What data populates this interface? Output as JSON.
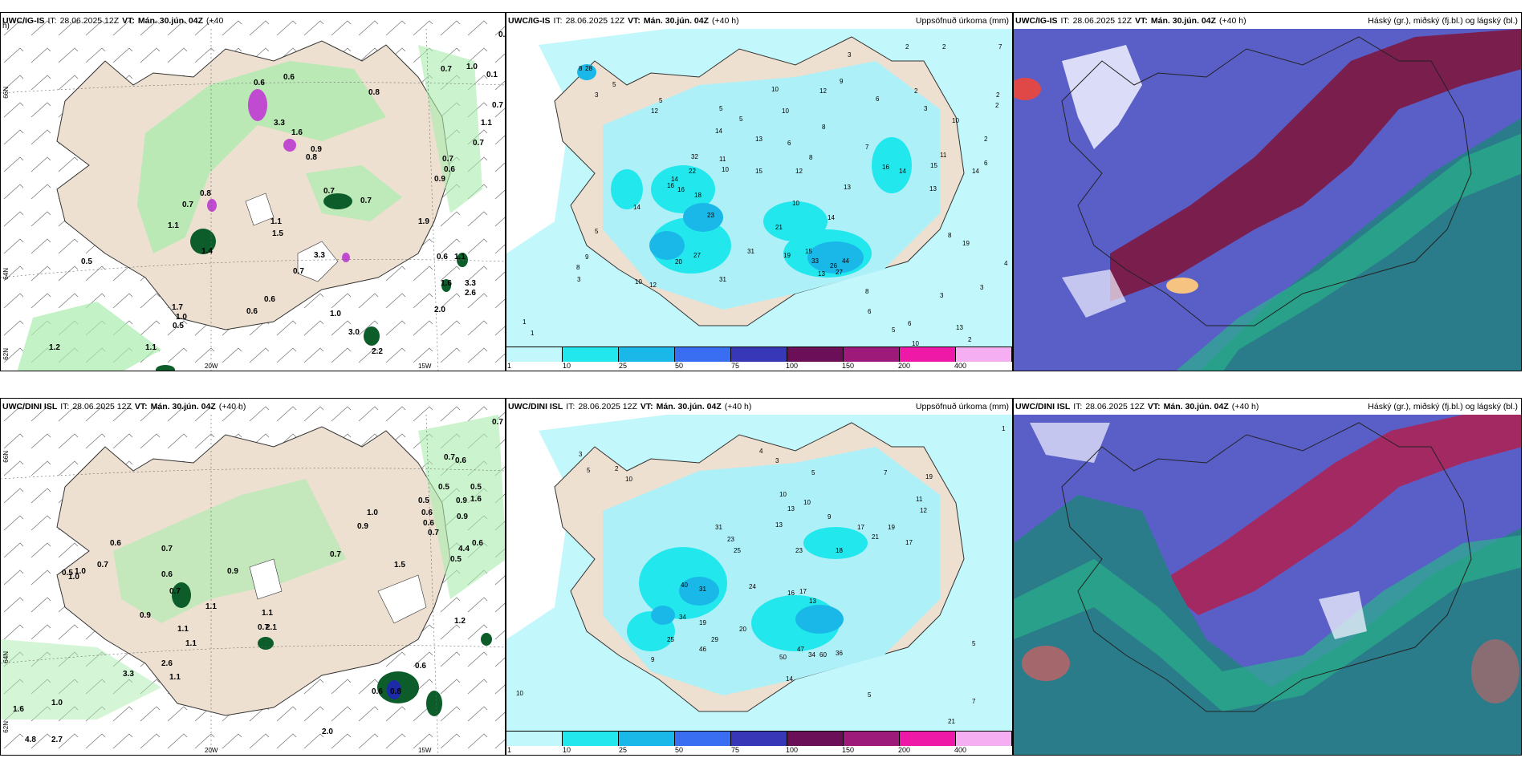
{
  "top_left": {
    "model": "UWC/IG-IS",
    "it_label": "IT:",
    "it_value": "28.06.2025 12Z",
    "vt_label": "VT:",
    "vt_value": "Mán. 30.jún. 04Z",
    "lead": "(+40",
    "lead2": "h)",
    "lat_labels": [
      "66N",
      "64N",
      "62N"
    ],
    "lon_labels": [
      "20W",
      "15W"
    ],
    "values": [
      "0.6",
      "0.7",
      "1.0",
      "0.1",
      "0.7",
      "1.1",
      "0.7",
      "0.8",
      "0.6",
      "0.6",
      "3.3",
      "1.6",
      "0.9",
      "0.8",
      "0.7",
      "0.6",
      "0.9",
      "0.8",
      "0.7",
      "0.7",
      "0.7",
      "1.1",
      "1.5",
      "1.1",
      "1.4",
      "0.5",
      "3.3",
      "0.7",
      "1.9",
      "0.6",
      "0.6",
      "1.1",
      "1.6",
      "3.3",
      "2.6",
      "0.6",
      "1.7",
      "1.0",
      "0.5",
      "1.0",
      "2.0",
      "3.0",
      "1.2",
      "1.1",
      "2.2"
    ]
  },
  "top_mid": {
    "model": "UWC/IG-IS",
    "it_label": "IT:",
    "it_value": "28.06.2025 12Z",
    "vt_label": "VT:",
    "vt_value": "Mán. 30.jún. 04Z",
    "lead": "(+40 h)",
    "right_title": "Uppsöfnuð úrkoma (mm)",
    "values": [
      "3",
      "2",
      "2",
      "7",
      "8",
      "28",
      "5",
      "3",
      "5",
      "12",
      "2",
      "2",
      "5",
      "10",
      "12",
      "9",
      "6",
      "2",
      "3",
      "5",
      "10",
      "8",
      "7",
      "10",
      "14",
      "13",
      "6",
      "8",
      "11",
      "10",
      "15",
      "12",
      "32",
      "22",
      "14",
      "16",
      "16",
      "18",
      "23",
      "14",
      "13",
      "16",
      "14",
      "15",
      "13",
      "11",
      "14",
      "6",
      "2",
      "10",
      "14",
      "19",
      "21",
      "27",
      "20",
      "31",
      "31",
      "15",
      "13",
      "27",
      "33",
      "44",
      "26",
      "8",
      "10",
      "12",
      "5",
      "9",
      "8",
      "3",
      "1",
      "1",
      "19",
      "3",
      "6",
      "13",
      "2",
      "6",
      "5",
      "8",
      "3",
      "10",
      "4"
    ],
    "legend_colors": [
      "#c2f7fb",
      "#22e8ee",
      "#19b8e8",
      "#3a6ef2",
      "#3737b8",
      "#6a0f58",
      "#9e1a7a",
      "#ee1aa7",
      "#f5aef2"
    ],
    "legend_ticks": [
      "1",
      "10",
      "25",
      "50",
      "75",
      "100",
      "150",
      "200",
      "400"
    ]
  },
  "top_right": {
    "model": "UWC/IG-IS",
    "it_label": "IT:",
    "it_value": "28.06.2025 12Z",
    "vt_label": "VT:",
    "vt_value": "Mán. 30.jún. 04Z",
    "lead": "(+40 h)",
    "right_title": "Háský (gr.), miðský (fj.bl.) og lágský (bl.)"
  },
  "bottom_left": {
    "model": "UWC/DINI ISL",
    "it_label": "IT:",
    "it_value": "28.06.2025 12Z",
    "vt_label": "VT:",
    "vt_value": "Mán. 30.jún. 04Z",
    "lead": "(+40 h)",
    "lat_labels": [
      "66N",
      "64N",
      "62N"
    ],
    "lon_labels": [
      "20W",
      "15W"
    ],
    "values": [
      "0.7",
      "0.7",
      "0.6",
      "0.5",
      "0.5",
      "1.6",
      "0.9",
      "0.5",
      "0.6",
      "0.9",
      "0.6",
      "0.7",
      "0.6",
      "4.4",
      "0.5",
      "1.0",
      "0.9",
      "0.6",
      "0.7",
      "1.0",
      "1.5",
      "0.7",
      "0.7",
      "0.6",
      "0.9",
      "0.7",
      "1.1",
      "0.9",
      "1.1",
      "1.1",
      "0.7",
      "1.1",
      "0.5",
      "1.0",
      "2.1",
      "0.6",
      "1.2",
      "2.6",
      "1.1",
      "3.3",
      "0.6",
      "0.8",
      "1.0",
      "1.6",
      "2.0",
      "4.8",
      "2.7"
    ]
  },
  "bottom_mid": {
    "model": "UWC/DINI ISL",
    "it_label": "IT:",
    "it_value": "28.06.2025 12Z",
    "vt_label": "VT:",
    "vt_value": "Mán. 30.jún. 04Z",
    "lead": "(+40 h)",
    "right_title": "Uppsöfnuð úrkoma (mm)",
    "values": [
      "1",
      "3",
      "5",
      "2",
      "10",
      "4",
      "3",
      "5",
      "7",
      "19",
      "10",
      "10",
      "13",
      "9",
      "11",
      "12",
      "31",
      "23",
      "25",
      "13",
      "23",
      "18",
      "17",
      "19",
      "21",
      "17",
      "40",
      "31",
      "24",
      "16",
      "17",
      "13",
      "34",
      "19",
      "29",
      "46",
      "20",
      "50",
      "47",
      "34",
      "60",
      "36",
      "25",
      "9",
      "14",
      "5",
      "21",
      "10",
      "7",
      "5"
    ],
    "legend_colors": [
      "#c2f7fb",
      "#22e8ee",
      "#19b8e8",
      "#3a6ef2",
      "#3737b8",
      "#6a0f58",
      "#9e1a7a",
      "#ee1aa7",
      "#f5aef2"
    ],
    "legend_ticks": [
      "1",
      "10",
      "25",
      "50",
      "75",
      "100",
      "150",
      "200",
      "400"
    ]
  },
  "bottom_right": {
    "model": "UWC/DINI ISL",
    "it_label": "IT:",
    "it_value": "28.06.2025 12Z",
    "vt_label": "VT:",
    "vt_value": "Mán. 30.jún. 04Z",
    "lead": "(+40 h)",
    "right_title": "Háský (gr.), miðský (fj.bl.) og lágský (bl.)"
  }
}
